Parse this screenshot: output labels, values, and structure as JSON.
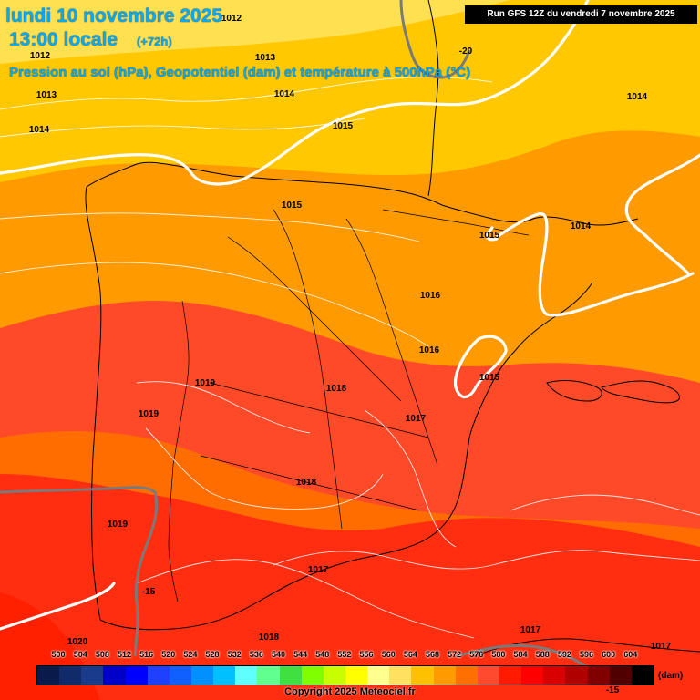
{
  "header": {
    "date": "lundi 10 novembre 2025",
    "time": "13:00 locale",
    "lead": "(+72h)",
    "parameters": "Pression au sol (hPa), Geopotentiel (dam) et température à 500hPa (°C)"
  },
  "run_info": "Run GFS 12Z du vendredi 7 novembre 2025",
  "copyright": "Copyright 2025 Meteociel.fr",
  "legend": {
    "unit": "(dam)",
    "ticks": [
      "500",
      "504",
      "508",
      "512",
      "516",
      "520",
      "524",
      "528",
      "532",
      "536",
      "540",
      "544",
      "548",
      "552",
      "556",
      "560",
      "564",
      "568",
      "572",
      "576",
      "580",
      "584",
      "588",
      "592",
      "596",
      "600",
      "604"
    ],
    "colors": [
      "#0a1a4a",
      "#102a6a",
      "#1a3a8c",
      "#0000c8",
      "#0000ff",
      "#2040ff",
      "#1060ff",
      "#0090ff",
      "#00c0ff",
      "#60ffff",
      "#60ff90",
      "#40e040",
      "#80ff00",
      "#c8ff00",
      "#ffff00",
      "#ffff90",
      "#ffe060",
      "#ffc000",
      "#ff9a00",
      "#ff7000",
      "#ff4a30",
      "#ff1a00",
      "#ff0000",
      "#d80000",
      "#b00000",
      "#800000",
      "#500000",
      "#000000"
    ]
  },
  "isobar_labels": [
    "1012",
    "1012",
    "1013",
    "1013",
    "1014",
    "1014",
    "1014",
    "1015",
    "1015",
    "1015",
    "1014",
    "1016",
    "1016",
    "1015",
    "1017",
    "1019",
    "1018",
    "1019",
    "1018",
    "1019",
    "1017",
    "1018",
    "1017",
    "1020",
    "1017"
  ],
  "temperature_labels": [
    "-20",
    "-15",
    "-15"
  ],
  "map": {
    "band_colors": [
      "#ffe050",
      "#ffc800",
      "#ff9a00",
      "#ff6c00",
      "#ff4a2a",
      "#ff2e10"
    ]
  }
}
